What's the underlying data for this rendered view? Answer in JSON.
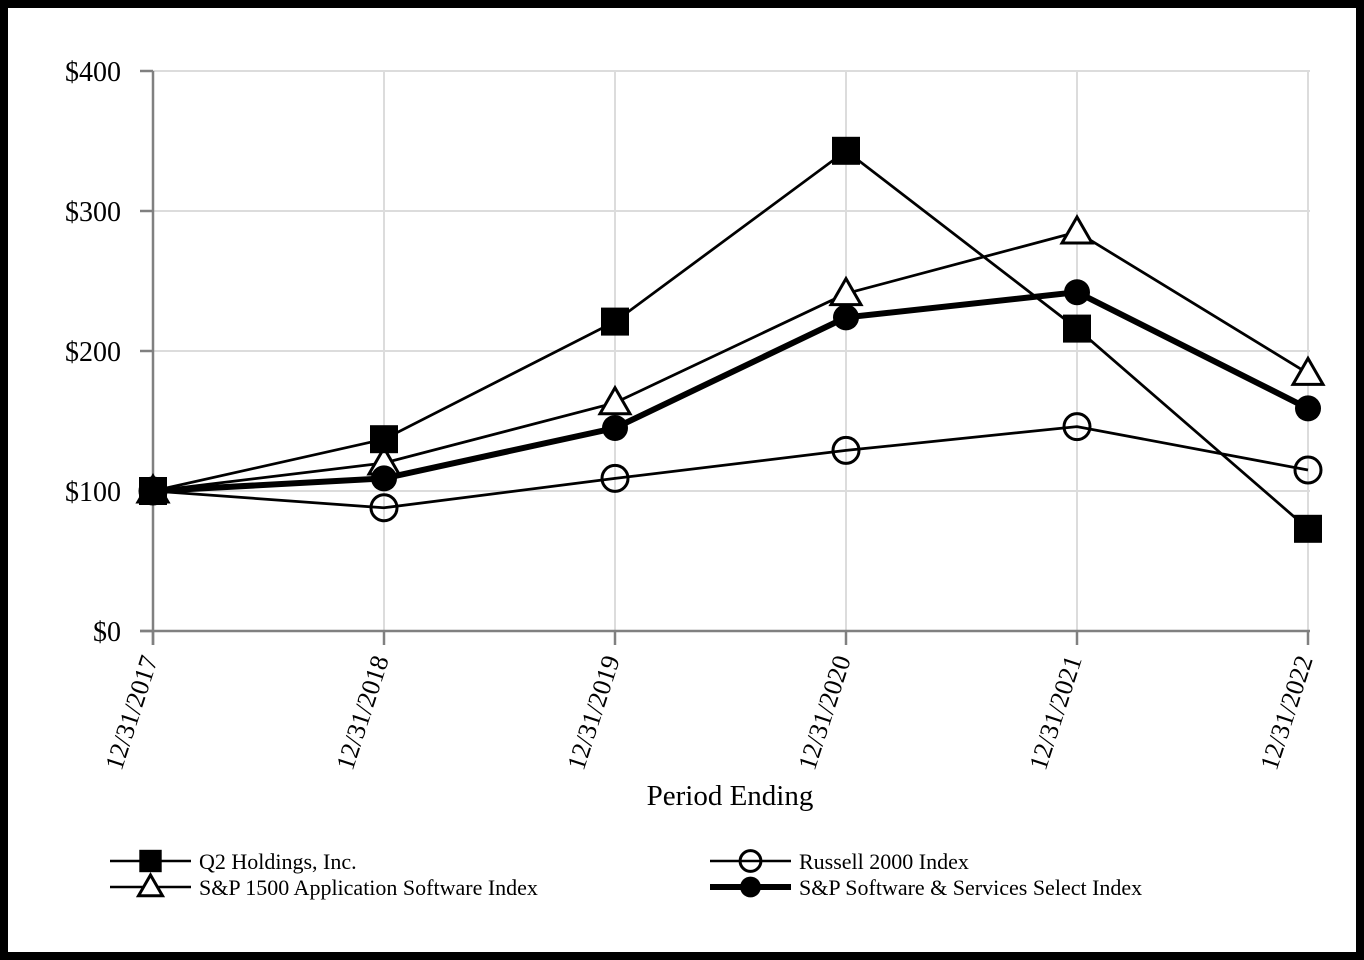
{
  "chart_data": {
    "type": "line",
    "title": "",
    "xlabel": "Period Ending",
    "ylabel": "",
    "x_categories": [
      "12/31/2017",
      "12/31/2018",
      "12/31/2019",
      "12/31/2020",
      "12/31/2021",
      "12/31/2022"
    ],
    "y_ticks": [
      {
        "label": "$400",
        "value": 400
      },
      {
        "label": "$300",
        "value": 300
      },
      {
        "label": "$200",
        "value": 200
      },
      {
        "label": "$100",
        "value": 100
      },
      {
        "label": "$0",
        "value": 0
      }
    ],
    "ylim": [
      0,
      400
    ],
    "grid": true,
    "legend_position": "bottom",
    "series": [
      {
        "name": "Q2 Holdings, Inc.",
        "marker": "filled-square",
        "line_weight": "thin",
        "values": [
          100,
          137,
          221,
          343,
          216,
          73
        ]
      },
      {
        "name": "Russell 2000 Index",
        "marker": "open-circle",
        "line_weight": "thin",
        "values": [
          100,
          88,
          109,
          129,
          146,
          115
        ]
      },
      {
        "name": "S&P 1500 Application Software Index",
        "marker": "open-triangle",
        "line_weight": "thin",
        "values": [
          100,
          120,
          163,
          241,
          285,
          184
        ]
      },
      {
        "name": "S&P Software & Services Select Index",
        "marker": "filled-circle",
        "line_weight": "thick",
        "values": [
          100,
          109,
          145,
          224,
          242,
          159
        ]
      }
    ],
    "legend_items": [
      {
        "series": 0,
        "col": 0,
        "row": 0
      },
      {
        "series": 2,
        "col": 0,
        "row": 1
      },
      {
        "series": 1,
        "col": 1,
        "row": 0
      },
      {
        "series": 3,
        "col": 1,
        "row": 1
      }
    ],
    "colors": {
      "series": "#000000",
      "grid": "#dcdcdc",
      "axis": "#808080",
      "background": "#ffffff",
      "frame": "#000000"
    }
  }
}
